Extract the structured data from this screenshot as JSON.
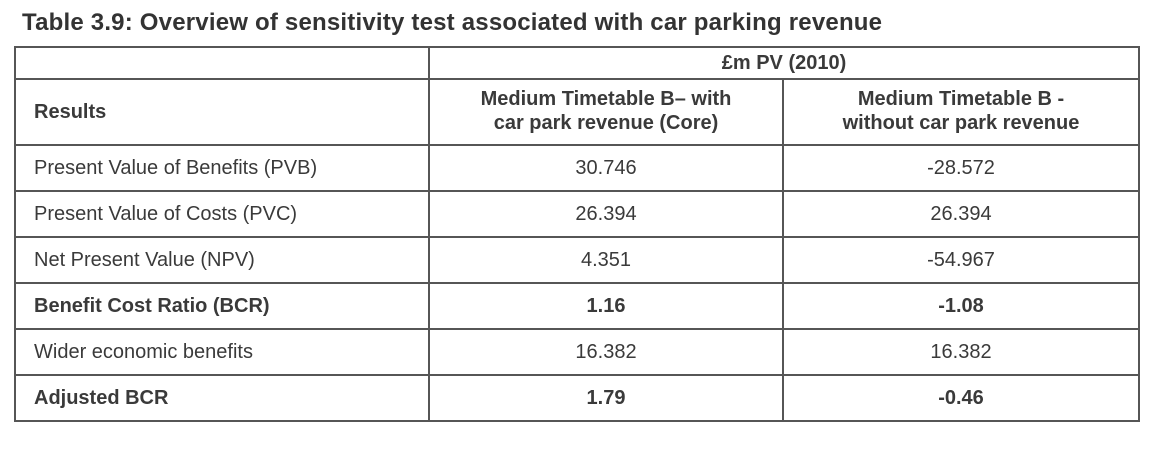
{
  "caption": "Table 3.9: Overview of sensitivity test associated with car parking revenue",
  "table": {
    "unit_header": "£m PV (2010)",
    "header": {
      "results": "Results",
      "with_revenue": "Medium Timetable B– with\ncar park revenue (Core)",
      "without_revenue": "Medium Timetable B -\nwithout car park revenue"
    },
    "rows": [
      {
        "label": "Present Value of Benefits (PVB)",
        "with_revenue": "30.746",
        "without_revenue": "-28.572"
      },
      {
        "label": "Present Value of Costs (PVC)",
        "with_revenue": "26.394",
        "without_revenue": "26.394"
      },
      {
        "label": "Net Present Value (NPV)",
        "with_revenue": "4.351",
        "without_revenue": "-54.967"
      },
      {
        "label": "Benefit Cost Ratio (BCR)",
        "with_revenue": "1.16",
        "without_revenue": "-1.08"
      },
      {
        "label": "Wider economic benefits",
        "with_revenue": "16.382",
        "without_revenue": "16.382"
      },
      {
        "label": "Adjusted BCR",
        "with_revenue": "1.79",
        "without_revenue": "-0.46"
      }
    ],
    "text_color": "#3a3a3a",
    "border_color": "#565656"
  }
}
